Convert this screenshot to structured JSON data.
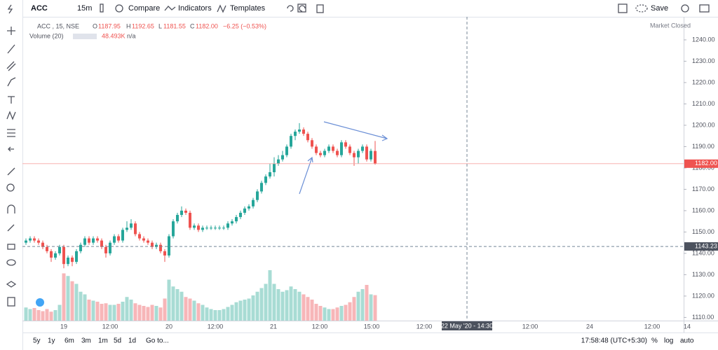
{
  "toolbar": {
    "symbol": "ACC",
    "interval": "15m",
    "compare": "Compare",
    "indicators": "Indicators",
    "templates": "Templates",
    "save": "Save"
  },
  "legend": {
    "title": "ACC , 15, NSE",
    "o_label": "O",
    "o": "1187.95",
    "h_label": "H",
    "h": "1192.65",
    "l_label": "L",
    "l": "1181.55",
    "c_label": "C",
    "c": "1182.00",
    "change": "−6.25 (−0.53%)",
    "volume_title": "Volume (20)",
    "volume": "48.493K",
    "volume_ma": "n/a",
    "status": "Market Closed"
  },
  "chart_data": {
    "type": "candlestick",
    "candles": [
      [
        1145,
        1147,
        1144,
        1146
      ],
      [
        1146,
        1148,
        1145,
        1147
      ],
      [
        1147,
        1148,
        1145,
        1146
      ],
      [
        1146,
        1147,
        1144,
        1145
      ],
      [
        1145,
        1146,
        1142,
        1143
      ],
      [
        1143,
        1144,
        1140,
        1141
      ],
      [
        1141,
        1142,
        1136,
        1138
      ],
      [
        1138,
        1141,
        1137,
        1140
      ],
      [
        1140,
        1144,
        1139,
        1143
      ],
      [
        1143,
        1144,
        1133,
        1135
      ],
      [
        1135,
        1139,
        1134,
        1138
      ],
      [
        1138,
        1139,
        1134,
        1136
      ],
      [
        1136,
        1142,
        1135,
        1141
      ],
      [
        1141,
        1145,
        1140,
        1144
      ],
      [
        1144,
        1148,
        1143,
        1147
      ],
      [
        1147,
        1148,
        1144,
        1145
      ],
      [
        1145,
        1148,
        1144,
        1147
      ],
      [
        1147,
        1148,
        1145,
        1146
      ],
      [
        1146,
        1147,
        1142,
        1143
      ],
      [
        1143,
        1144,
        1138,
        1140
      ],
      [
        1140,
        1146,
        1139,
        1145
      ],
      [
        1145,
        1149,
        1144,
        1148
      ],
      [
        1148,
        1149,
        1145,
        1146
      ],
      [
        1146,
        1152,
        1145,
        1151
      ],
      [
        1151,
        1155,
        1150,
        1152
      ],
      [
        1152,
        1156,
        1151,
        1154
      ],
      [
        1154,
        1155,
        1148,
        1149
      ],
      [
        1149,
        1150,
        1146,
        1147
      ],
      [
        1147,
        1148,
        1145,
        1146
      ],
      [
        1146,
        1147,
        1144,
        1145
      ],
      [
        1145,
        1146,
        1142,
        1143
      ],
      [
        1143,
        1145,
        1142,
        1144
      ],
      [
        1144,
        1145,
        1140,
        1141
      ],
      [
        1141,
        1142,
        1136,
        1139
      ],
      [
        1139,
        1149,
        1138,
        1148
      ],
      [
        1148,
        1156,
        1147,
        1155
      ],
      [
        1155,
        1159,
        1154,
        1158
      ],
      [
        1158,
        1162,
        1157,
        1160
      ],
      [
        1160,
        1161,
        1158,
        1159
      ],
      [
        1159,
        1160,
        1151,
        1152
      ],
      [
        1152,
        1154,
        1151,
        1153
      ],
      [
        1153,
        1154,
        1150,
        1151
      ],
      [
        1151,
        1153,
        1150,
        1152
      ],
      [
        1152,
        1153,
        1151,
        1152
      ],
      [
        1152,
        1153,
        1151,
        1152
      ],
      [
        1152,
        1153,
        1151,
        1152
      ],
      [
        1152,
        1153,
        1151,
        1152
      ],
      [
        1152,
        1153,
        1151,
        1152
      ],
      [
        1152,
        1155,
        1151,
        1154
      ],
      [
        1154,
        1156,
        1153,
        1155
      ],
      [
        1155,
        1158,
        1154,
        1157
      ],
      [
        1157,
        1160,
        1156,
        1159
      ],
      [
        1159,
        1162,
        1158,
        1161
      ],
      [
        1161,
        1163,
        1160,
        1162
      ],
      [
        1162,
        1166,
        1161,
        1165
      ],
      [
        1165,
        1170,
        1164,
        1169
      ],
      [
        1169,
        1174,
        1168,
        1173
      ],
      [
        1173,
        1177,
        1172,
        1176
      ],
      [
        1176,
        1182,
        1175,
        1178
      ],
      [
        1178,
        1185,
        1176,
        1182
      ],
      [
        1182,
        1186,
        1181,
        1184
      ],
      [
        1184,
        1188,
        1183,
        1186
      ],
      [
        1186,
        1191,
        1185,
        1190
      ],
      [
        1190,
        1196,
        1189,
        1195
      ],
      [
        1195,
        1198,
        1193,
        1197
      ],
      [
        1197,
        1201,
        1196,
        1198
      ],
      [
        1198,
        1199,
        1195,
        1196
      ],
      [
        1196,
        1197,
        1192,
        1193
      ],
      [
        1193,
        1194,
        1189,
        1190
      ],
      [
        1190,
        1191,
        1186,
        1187
      ],
      [
        1187,
        1188,
        1185,
        1186
      ],
      [
        1186,
        1189,
        1185,
        1188
      ],
      [
        1188,
        1191,
        1187,
        1190
      ],
      [
        1190,
        1191,
        1187,
        1188
      ],
      [
        1188,
        1189,
        1185,
        1186
      ],
      [
        1186,
        1193,
        1185,
        1192
      ],
      [
        1192,
        1193,
        1189,
        1190
      ],
      [
        1190,
        1191,
        1186,
        1187
      ],
      [
        1187,
        1188,
        1181,
        1185
      ],
      [
        1185,
        1189,
        1182,
        1188
      ],
      [
        1188,
        1191,
        1187,
        1190
      ],
      [
        1190,
        1191,
        1183,
        1184
      ],
      [
        1184,
        1189,
        1183,
        1188
      ],
      [
        1187.95,
        1192.65,
        1181.55,
        1182
      ]
    ],
    "volume": [
      25,
      22,
      24,
      20,
      18,
      22,
      17,
      20,
      30,
      90,
      85,
      75,
      70,
      55,
      50,
      40,
      38,
      36,
      32,
      33,
      30,
      30,
      32,
      36,
      45,
      40,
      33,
      30,
      28,
      26,
      30,
      28,
      25,
      42,
      78,
      65,
      60,
      55,
      45,
      42,
      38,
      33,
      30,
      25,
      22,
      20,
      20,
      22,
      26,
      30,
      35,
      38,
      40,
      42,
      48,
      55,
      62,
      70,
      96,
      70,
      60,
      55,
      58,
      65,
      60,
      55,
      50,
      45,
      40,
      32,
      28,
      25,
      22,
      22,
      25,
      28,
      30,
      35,
      45,
      55,
      60,
      68,
      50,
      48.493
    ],
    "up_color": "#26a69a",
    "down_color": "#ef5350",
    "volume_up_color": "#a8dcd4",
    "volume_down_color": "#f7b6b8",
    "ylim": [
      1108.5,
      1250.8
    ],
    "yticks": [
      {
        "value": 1110,
        "label": "1110.00"
      },
      {
        "value": 1120,
        "label": "1120.00"
      },
      {
        "value": 1130,
        "label": "1130.00"
      },
      {
        "value": 1140,
        "label": "1140.00"
      },
      {
        "value": 1150,
        "label": "1150.00"
      },
      {
        "value": 1160,
        "label": "1160.00"
      },
      {
        "value": 1170,
        "label": "1170.00"
      },
      {
        "value": 1180,
        "label": "1180.00"
      },
      {
        "value": 1190,
        "label": "1190.00"
      },
      {
        "value": 1200,
        "label": "1200.00"
      },
      {
        "value": 1210,
        "label": "1210.00"
      },
      {
        "value": 1220,
        "label": "1220.00"
      },
      {
        "value": 1230,
        "label": "1230.00"
      },
      {
        "value": 1240,
        "label": "1240.00"
      }
    ],
    "xticks": [
      "19",
      "12:00",
      "20",
      "12:00",
      "21",
      "12:00",
      "15:00",
      "12:00",
      "12:00",
      "24",
      "12:00",
      "14"
    ],
    "last_price": {
      "value": 1182,
      "label": "1182.00"
    },
    "crosshair": {
      "price": {
        "value": 1143.23,
        "label": "1143.23"
      },
      "time": "22 May '20 - 14:30"
    }
  },
  "bottom": {
    "ranges": [
      "5y",
      "1y",
      "6m",
      "3m",
      "1m",
      "5d",
      "1d"
    ],
    "goto": "Go to...",
    "clock": "17:58:48 (UTC+5:30)",
    "percent": "%",
    "log": "log",
    "auto": "auto"
  }
}
